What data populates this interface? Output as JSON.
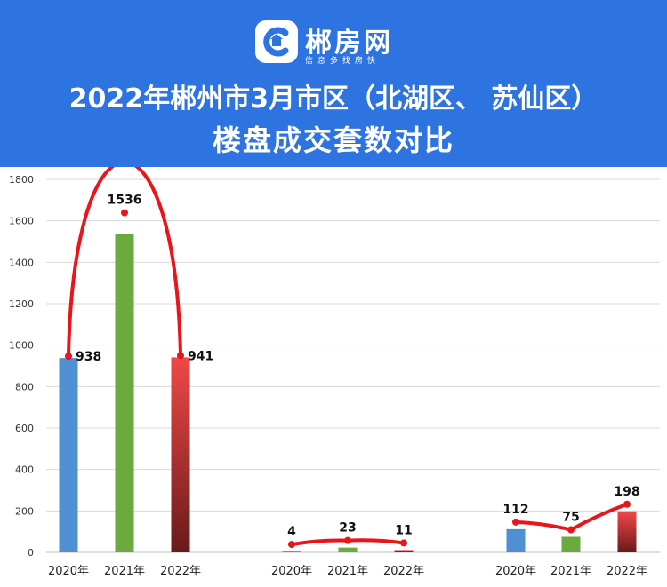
{
  "header": {
    "logo_name": "郴房网",
    "logo_slogan": "信息多找房快",
    "title_line1": "2022年郴州市3月市区（北湖区、 苏仙区）",
    "title_line2": "楼盘成交套数对比"
  },
  "chart_data": {
    "type": "bar",
    "title": "2022年郴州市3月市区（北湖区、 苏仙区）楼盘成交套数对比",
    "ylim": [
      0,
      1800
    ],
    "yticks": [
      0,
      200,
      400,
      600,
      800,
      1000,
      1200,
      1400,
      1600,
      1800
    ],
    "grid": true,
    "groups": [
      {
        "categories": [
          "2020年",
          "2021年",
          "2022年"
        ],
        "values": [
          938,
          1536,
          941
        ]
      },
      {
        "categories": [
          "2020年",
          "2021年",
          "2022年"
        ],
        "values": [
          4,
          23,
          11
        ]
      },
      {
        "categories": [
          "2020年",
          "2021年",
          "2022年"
        ],
        "values": [
          112,
          75,
          198
        ]
      }
    ],
    "bar_colors": [
      "#4f8fd4",
      "#6aaa3f",
      "#e03a3a"
    ],
    "trend_line_color": "#e8161b"
  }
}
